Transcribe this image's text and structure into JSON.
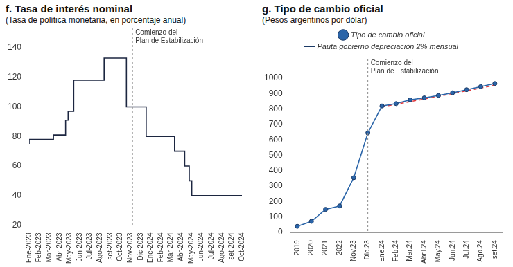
{
  "chart_data": [
    {
      "type": "line",
      "title": "f. Tasa de interés nominal",
      "subtitle": "(Tasa de política monetaria, en porcentaje anual)",
      "x": [
        0,
        2.4,
        3.6,
        3.85,
        4.4,
        7.4,
        9.6,
        11.55,
        14.35,
        15.35,
        15.8,
        16.05,
        16.45,
        21
      ],
      "values": [
        75,
        78,
        81,
        91,
        97,
        118,
        133,
        100,
        80,
        70,
        60,
        50,
        40,
        40
      ],
      "color": "#1c2640",
      "line_style": "step",
      "marker": "none",
      "xlim": [
        0,
        21
      ],
      "xticks": [
        {
          "value": 0,
          "label": "Ene-2023"
        },
        {
          "value": 1,
          "label": "Feb-2023"
        },
        {
          "value": 2,
          "label": "Mar-2023"
        },
        {
          "value": 3,
          "label": "Abr-2023"
        },
        {
          "value": 4,
          "label": "May-2023"
        },
        {
          "value": 5,
          "label": "Jun-2023"
        },
        {
          "value": 6,
          "label": "Jul-2023"
        },
        {
          "value": 7,
          "label": "Ago-2023"
        },
        {
          "value": 8,
          "label": "set-2023"
        },
        {
          "value": 9,
          "label": "Oct-2023"
        },
        {
          "value": 10,
          "label": "Nov-2023"
        },
        {
          "value": 11,
          "label": "Dic-2023"
        },
        {
          "value": 12,
          "label": "Ene-2024"
        },
        {
          "value": 13,
          "label": "Feb-2024"
        },
        {
          "value": 14,
          "label": "Mar-2024"
        },
        {
          "value": 15,
          "label": "Abr-2024"
        },
        {
          "value": 16,
          "label": "May-2024"
        },
        {
          "value": 17,
          "label": "Jun-2024"
        },
        {
          "value": 18,
          "label": "Jul-2024"
        },
        {
          "value": 19,
          "label": "Ago-2024"
        },
        {
          "value": 20,
          "label": "set-2024"
        },
        {
          "value": 21,
          "label": "Oct-2024"
        }
      ],
      "ylim": [
        20,
        140
      ],
      "yticks": [
        20,
        40,
        60,
        80,
        100,
        120,
        140
      ],
      "grid": false,
      "annotations": [
        {
          "x": 10.2,
          "text": [
            "Comienzo del",
            "Plan de Estabilización"
          ]
        }
      ]
    },
    {
      "type": "line",
      "title": "g. Tipo de cambio oficial",
      "subtitle": "(Pesos argentinos por dólar)",
      "categories": [
        "2019",
        "2020",
        "2021",
        "2022",
        "Nov.23",
        "Dic.23",
        "Ene.24",
        "Feb.24",
        "Mar.24",
        "Abril.24",
        "May.24",
        "Jun.24",
        "Jul.24",
        "Ago.24",
        "set.24"
      ],
      "series": [
        {
          "name": "Tipo de cambio oficial",
          "color": "#2a64a8",
          "marker": "circle",
          "line_style": "solid",
          "values": [
            40,
            72,
            150,
            172,
            355,
            645,
            820,
            835,
            860,
            872,
            888,
            905,
            925,
            945,
            965
          ]
        },
        {
          "name": "Pauta gobierno depreciación 2% mensual",
          "color": "#e0393e",
          "marker": "none",
          "line_style": "dashed",
          "values": [
            null,
            null,
            null,
            null,
            null,
            null,
            815,
            831,
            848,
            865,
            882,
            900,
            918,
            936,
            955
          ]
        }
      ],
      "ylim": [
        0,
        1000
      ],
      "yticks": [
        0,
        100,
        200,
        300,
        400,
        500,
        600,
        700,
        800,
        900,
        1000
      ],
      "grid": false,
      "legend": "top",
      "annotations": [
        {
          "x": "Dic.23",
          "text": [
            "Comienzo del",
            "Plan de Estabilización"
          ]
        }
      ]
    }
  ]
}
